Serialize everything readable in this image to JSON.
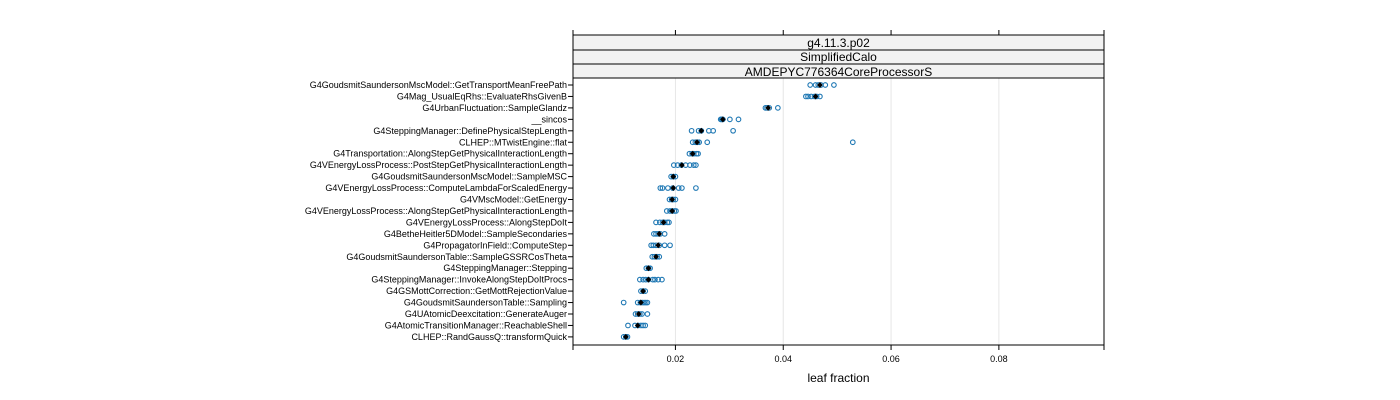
{
  "chart_data": {
    "type": "scatter",
    "strips": [
      "g4.11.3.p02",
      "SimplifiedCalo",
      "AMDEPYC776364CoreProcessorS"
    ],
    "xlabel": "leaf fraction",
    "x_ticks": [
      0.02,
      0.04,
      0.06,
      0.08
    ],
    "xlim": [
      0.001,
      0.0995
    ],
    "grid": true,
    "colors": {
      "points": "#1f78b4",
      "mean": "#000000",
      "grid": "#e6e6e6",
      "strip_bg": "#f2f2f2"
    },
    "categories": [
      "G4GoudsmitSaundersonMscModel::GetTransportMeanFreePath",
      "G4Mag_UsualEqRhs::EvaluateRhsGivenB",
      "G4UrbanFluctuation::SampleGlandz",
      "__sincos",
      "G4SteppingManager::DefinePhysicalStepLength",
      "CLHEP::MTwistEngine::flat",
      "G4Transportation::AlongStepGetPhysicalInteractionLength",
      "G4VEnergyLossProcess::PostStepGetPhysicalInteractionLength",
      "G4GoudsmitSaundersonMscModel::SampleMSC",
      "G4VEnergyLossProcess::ComputeLambdaForScaledEnergy",
      "G4VMscModel::GetEnergy",
      "G4VEnergyLossProcess::AlongStepGetPhysicalInteractionLength",
      "G4VEnergyLossProcess::AlongStepDoIt",
      "G4BetheHeitler5DModel::SampleSecondaries",
      "G4PropagatorInField::ComputeStep",
      "G4GoudsmitSaundersonTable::SampleGSSRCosTheta",
      "G4SteppingManager::Stepping",
      "G4SteppingManager::InvokeAlongStepDoItProcs",
      "G4GSMottCorrection::GetMottRejectionValue",
      "G4GoudsmitSaundersonTable::Sampling",
      "G4UAtomicDeexcitation::GenerateAuger",
      "G4AtomicTransitionManager::ReachableShell",
      "CLHEP::RandGaussQ::transformQuick"
    ],
    "series": [
      {
        "points": [
          0.045,
          0.046,
          0.0465,
          0.047,
          0.0478,
          0.0494
        ],
        "mean": 0.0468
      },
      {
        "points": [
          0.0442,
          0.0446,
          0.0452,
          0.0458,
          0.0462,
          0.0468
        ],
        "mean": 0.046
      },
      {
        "points": [
          0.0367,
          0.037,
          0.0374,
          0.039
        ],
        "mean": 0.0372
      },
      {
        "points": [
          0.0284,
          0.0286,
          0.0288,
          0.0301,
          0.0317
        ],
        "mean": 0.0288
      },
      {
        "points": [
          0.023,
          0.0243,
          0.0248,
          0.0262,
          0.027,
          0.0307
        ],
        "mean": 0.0248
      },
      {
        "points": [
          0.0232,
          0.0237,
          0.0241,
          0.0244,
          0.0259,
          0.0529
        ],
        "mean": 0.024
      },
      {
        "points": [
          0.0226,
          0.0231,
          0.0234,
          0.0239,
          0.0242
        ],
        "mean": 0.0232
      },
      {
        "points": [
          0.0197,
          0.0204,
          0.0211,
          0.0219,
          0.0227,
          0.0234,
          0.0238
        ],
        "mean": 0.0212
      },
      {
        "points": [
          0.0192,
          0.0196,
          0.02
        ],
        "mean": 0.0196
      },
      {
        "points": [
          0.0172,
          0.0176,
          0.0186,
          0.0195,
          0.0206,
          0.0212,
          0.0238
        ],
        "mean": 0.0196
      },
      {
        "points": [
          0.0189,
          0.0193,
          0.0196,
          0.02
        ],
        "mean": 0.0194
      },
      {
        "points": [
          0.0184,
          0.019,
          0.0194,
          0.0198,
          0.0201
        ],
        "mean": 0.0194
      },
      {
        "points": [
          0.0164,
          0.0171,
          0.0176,
          0.018,
          0.0185,
          0.0188
        ],
        "mean": 0.0178
      },
      {
        "points": [
          0.016,
          0.0164,
          0.0168,
          0.0172,
          0.018
        ],
        "mean": 0.017
      },
      {
        "points": [
          0.0155,
          0.0159,
          0.0164,
          0.017,
          0.018,
          0.019
        ],
        "mean": 0.0168
      },
      {
        "points": [
          0.0157,
          0.0161,
          0.0166,
          0.017
        ],
        "mean": 0.0164
      },
      {
        "points": [
          0.0146,
          0.015,
          0.0153
        ],
        "mean": 0.015
      },
      {
        "points": [
          0.0134,
          0.014,
          0.0145,
          0.015,
          0.0158,
          0.0162,
          0.0168,
          0.0175
        ],
        "mean": 0.015
      },
      {
        "points": [
          0.0136,
          0.014,
          0.0144
        ],
        "mean": 0.014
      },
      {
        "points": [
          0.0104,
          0.013,
          0.0135,
          0.0139,
          0.0142,
          0.0145,
          0.0148
        ],
        "mean": 0.0136
      },
      {
        "points": [
          0.0126,
          0.013,
          0.0134,
          0.0138,
          0.0148
        ],
        "mean": 0.0132
      },
      {
        "points": [
          0.0112,
          0.0125,
          0.0131,
          0.0136,
          0.014,
          0.0144
        ],
        "mean": 0.013
      },
      {
        "points": [
          0.0104,
          0.0108,
          0.0111
        ],
        "mean": 0.0108
      }
    ]
  }
}
